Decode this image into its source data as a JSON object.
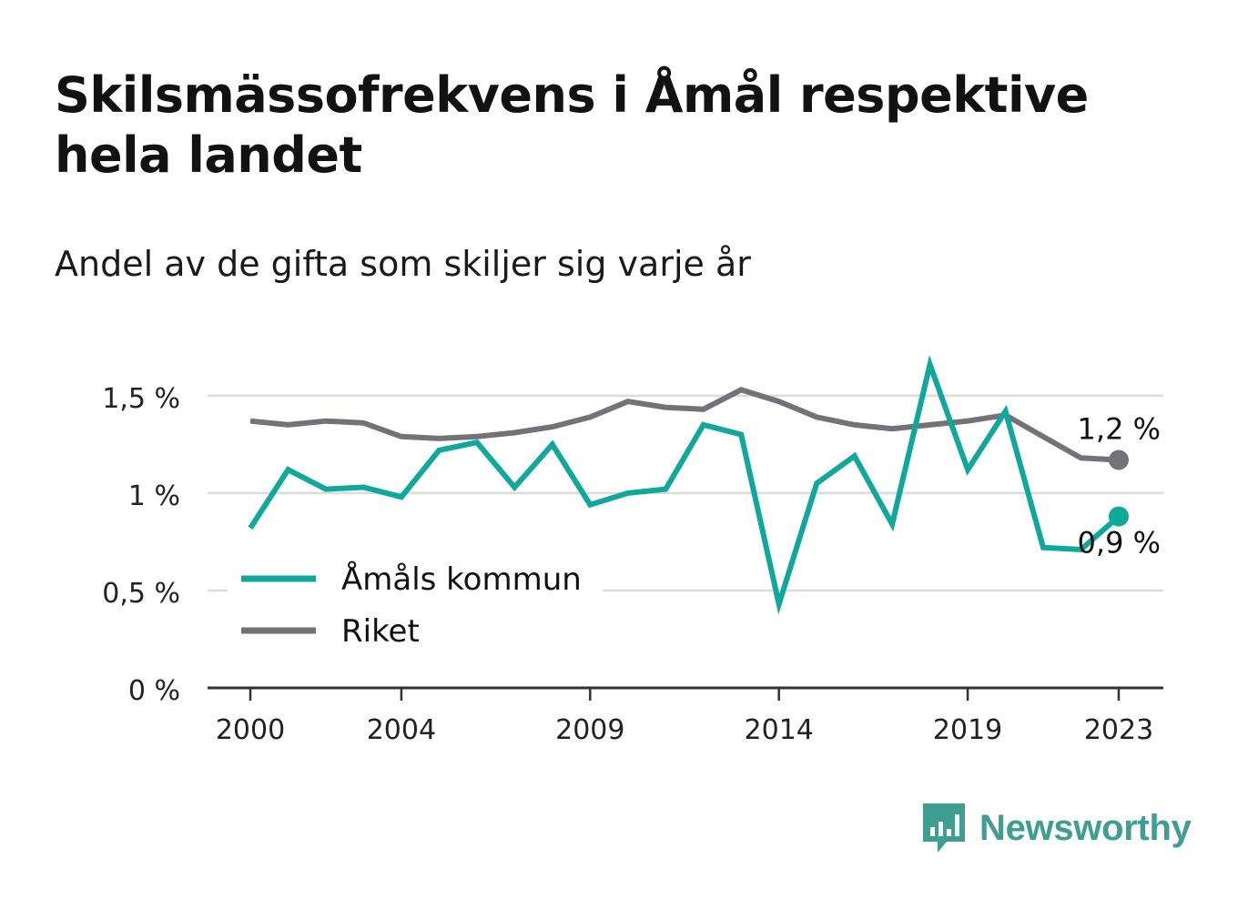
{
  "title": "Skilsmässofrekvens i Åmål respektive hela landet",
  "subtitle": "Andel av de gifta som skiljer sig varje år",
  "brand": {
    "name": "Newsworthy",
    "icon": "newsworthy-logo-icon",
    "color": "#3e9e92"
  },
  "colors": {
    "amal": "#0fa89a",
    "riket": "#737278",
    "grid": "#dcdcdc",
    "axis": "#333333"
  },
  "chart_data": {
    "type": "line",
    "x": [
      2000,
      2001,
      2002,
      2003,
      2004,
      2005,
      2006,
      2007,
      2008,
      2009,
      2010,
      2011,
      2012,
      2013,
      2014,
      2015,
      2016,
      2017,
      2018,
      2019,
      2020,
      2021,
      2022,
      2023
    ],
    "x_ticks": [
      2000,
      2004,
      2009,
      2014,
      2019,
      2023
    ],
    "x_tick_labels": [
      "2000",
      "2004",
      "2009",
      "2014",
      "2019",
      "2023"
    ],
    "y_ticks": [
      0,
      0.5,
      1,
      1.5
    ],
    "y_tick_labels": [
      "0 %",
      "0,5 %",
      "1 %",
      "1,5 %"
    ],
    "ylim": [
      0,
      1.7
    ],
    "grid": true,
    "legend_position": "bottom-left",
    "series": [
      {
        "name": "Åmåls kommun",
        "color": "#0fa89a",
        "values": [
          0.82,
          1.12,
          1.02,
          1.03,
          0.98,
          1.22,
          1.26,
          1.03,
          1.25,
          0.94,
          1.0,
          1.02,
          1.35,
          1.3,
          0.43,
          1.05,
          1.19,
          0.84,
          1.66,
          1.12,
          1.42,
          0.72,
          0.71,
          0.88
        ],
        "end_label": "0,9 %"
      },
      {
        "name": "Riket",
        "color": "#737278",
        "values": [
          1.37,
          1.35,
          1.37,
          1.36,
          1.29,
          1.28,
          1.29,
          1.31,
          1.34,
          1.39,
          1.47,
          1.44,
          1.43,
          1.53,
          1.47,
          1.39,
          1.35,
          1.33,
          1.35,
          1.37,
          1.4,
          1.29,
          1.18,
          1.17
        ],
        "end_label": "1,2 %"
      }
    ]
  }
}
